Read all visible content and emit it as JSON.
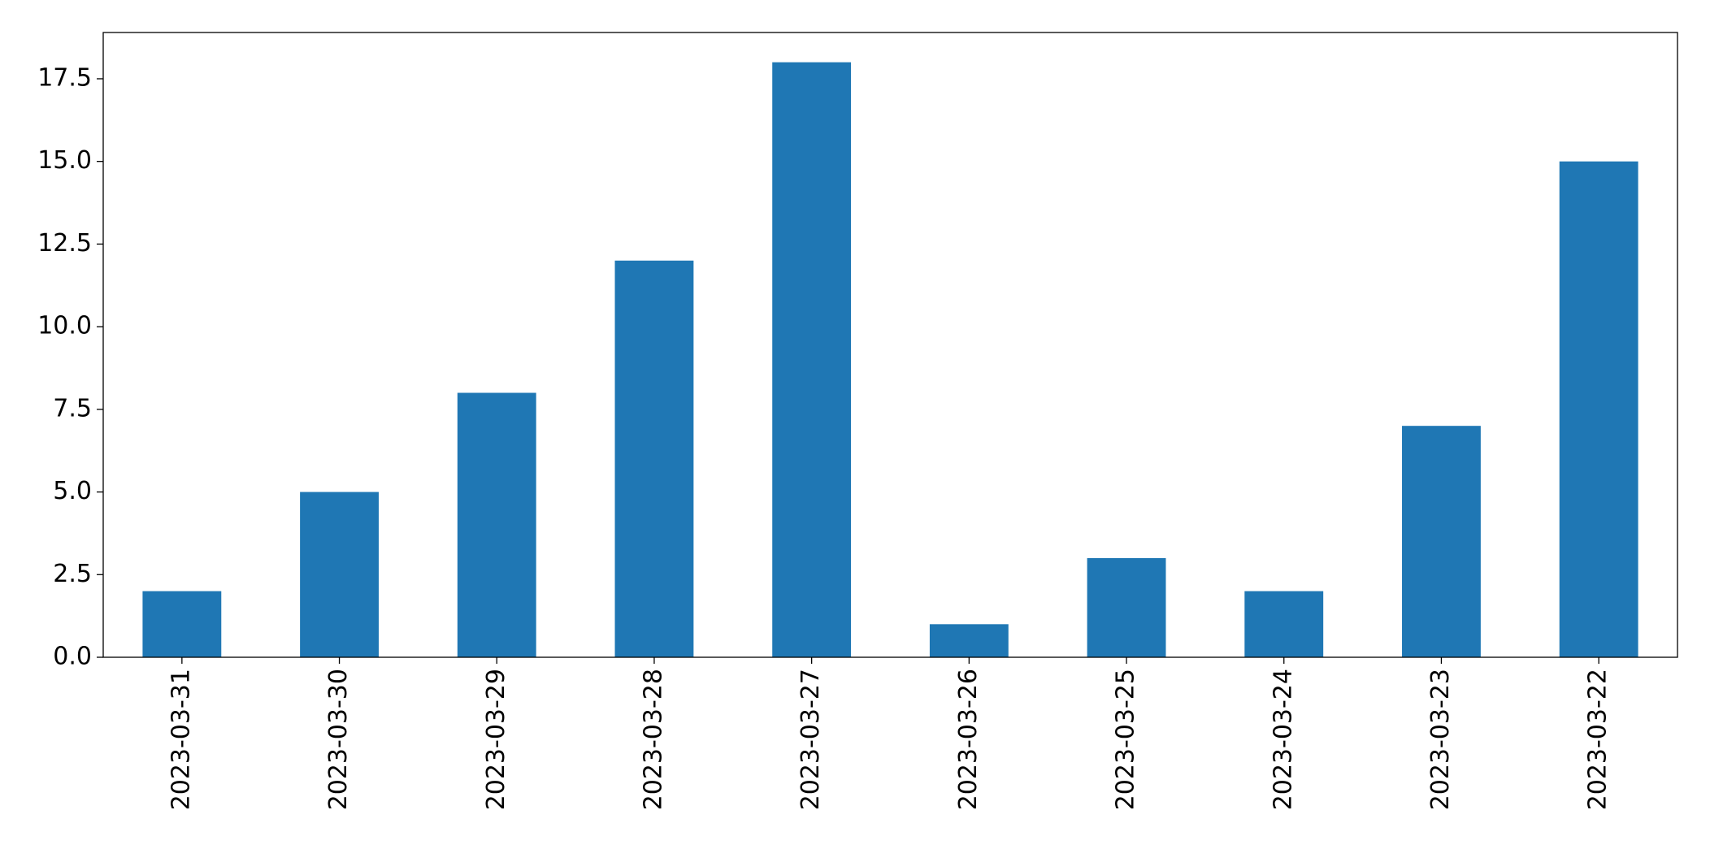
{
  "chart_data": {
    "type": "bar",
    "categories": [
      "2023-03-31",
      "2023-03-30",
      "2023-03-29",
      "2023-03-28",
      "2023-03-27",
      "2023-03-26",
      "2023-03-25",
      "2023-03-24",
      "2023-03-23",
      "2023-03-22"
    ],
    "values": [
      2,
      5,
      8,
      12,
      18,
      1,
      3,
      2,
      7,
      15
    ],
    "color": "#1f77b4",
    "ylim": [
      0,
      18.9
    ],
    "yticks": [
      {
        "value": 0,
        "label": "0.0"
      },
      2.5,
      {
        "value": 5,
        "label": "5.0"
      },
      7.5,
      {
        "value": 10,
        "label": "10.0"
      },
      12.5,
      {
        "value": 15,
        "label": "15.0"
      },
      17.5
    ],
    "grid": false
  }
}
